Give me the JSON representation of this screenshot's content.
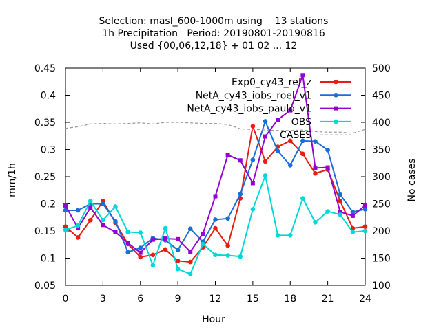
{
  "chart_data": {
    "type": "line",
    "title_lines": [
      "Selection: masl_600-1000m using    13 stations",
      "1h Precipitation   Period: 20190801-20190816",
      "Used {00,06,12,18} + 01 02 ... 12"
    ],
    "xlabel": "Hour",
    "ylabel": "mm/1h",
    "y2label": "No cases",
    "xlim": [
      0,
      24
    ],
    "ylim": [
      0.05,
      0.45
    ],
    "y2lim": [
      100,
      500
    ],
    "x_ticks": [
      "0",
      "3",
      "6",
      "9",
      "12",
      "15",
      "18",
      "21",
      "24"
    ],
    "y_ticks": [
      "0.05",
      "0.1",
      "0.15",
      "0.2",
      "0.25",
      "0.3",
      "0.35",
      "0.4",
      "0.45"
    ],
    "y2_ticks": [
      "100",
      "150",
      "200",
      "250",
      "300",
      "350",
      "400",
      "450",
      "500"
    ],
    "grid": false,
    "legend_position": "top-right",
    "x": [
      0,
      1,
      2,
      3,
      4,
      5,
      6,
      7,
      8,
      9,
      10,
      11,
      12,
      13,
      14,
      15,
      16,
      17,
      18,
      19,
      20,
      21,
      22,
      23,
      24
    ],
    "series": [
      {
        "name": "Exp0_cy43_ref_z",
        "color": "#e51e10",
        "marker": "filled-circle",
        "axis": "left",
        "values": [
          0.158,
          0.138,
          0.17,
          0.205,
          0.165,
          0.126,
          0.102,
          0.106,
          0.116,
          0.095,
          0.093,
          0.12,
          0.155,
          0.123,
          0.21,
          0.343,
          0.278,
          0.305,
          0.316,
          0.292,
          0.256,
          0.263,
          0.205,
          0.155,
          0.158
        ]
      },
      {
        "name": "NetA_cy43_iobs_roel_v1",
        "color": "#1a6fd6",
        "marker": "filled-circle",
        "axis": "left",
        "values": [
          0.188,
          0.188,
          0.2,
          0.2,
          0.168,
          0.111,
          0.119,
          0.137,
          0.133,
          0.115,
          0.154,
          0.13,
          0.171,
          0.173,
          0.218,
          0.281,
          0.352,
          0.297,
          0.271,
          0.316,
          0.315,
          0.299,
          0.217,
          0.185,
          0.19
        ]
      },
      {
        "name": "NetA_cy43_iobs_paulo_v1",
        "color": "#9500d3",
        "marker": "filled-square",
        "axis": "left",
        "values": [
          0.197,
          0.155,
          0.193,
          0.161,
          0.148,
          0.128,
          0.11,
          0.134,
          0.136,
          0.135,
          0.112,
          0.145,
          0.214,
          0.29,
          0.28,
          0.238,
          0.324,
          0.355,
          0.372,
          0.437,
          0.266,
          0.267,
          0.185,
          0.178,
          0.197
        ]
      },
      {
        "name": "OBS",
        "color": "#00d8d8",
        "marker": "filled-circle",
        "axis": "left",
        "values": [
          0.152,
          0.16,
          0.205,
          0.17,
          0.195,
          0.148,
          0.147,
          0.087,
          0.155,
          0.08,
          0.071,
          0.126,
          0.106,
          0.105,
          0.103,
          0.19,
          0.252,
          0.142,
          0.142,
          0.21,
          0.166,
          0.186,
          0.18,
          0.148,
          0.15
        ]
      },
      {
        "name": "CASES",
        "color": "#999999",
        "marker": "none",
        "dash": "dashed",
        "axis": "right",
        "values": [
          389,
          392,
          397,
          398,
          397,
          398,
          399,
          397,
          400,
          400,
          399,
          398,
          398,
          396,
          388,
          387,
          386,
          385,
          385,
          386,
          383,
          382,
          382,
          380,
          387
        ]
      }
    ]
  }
}
